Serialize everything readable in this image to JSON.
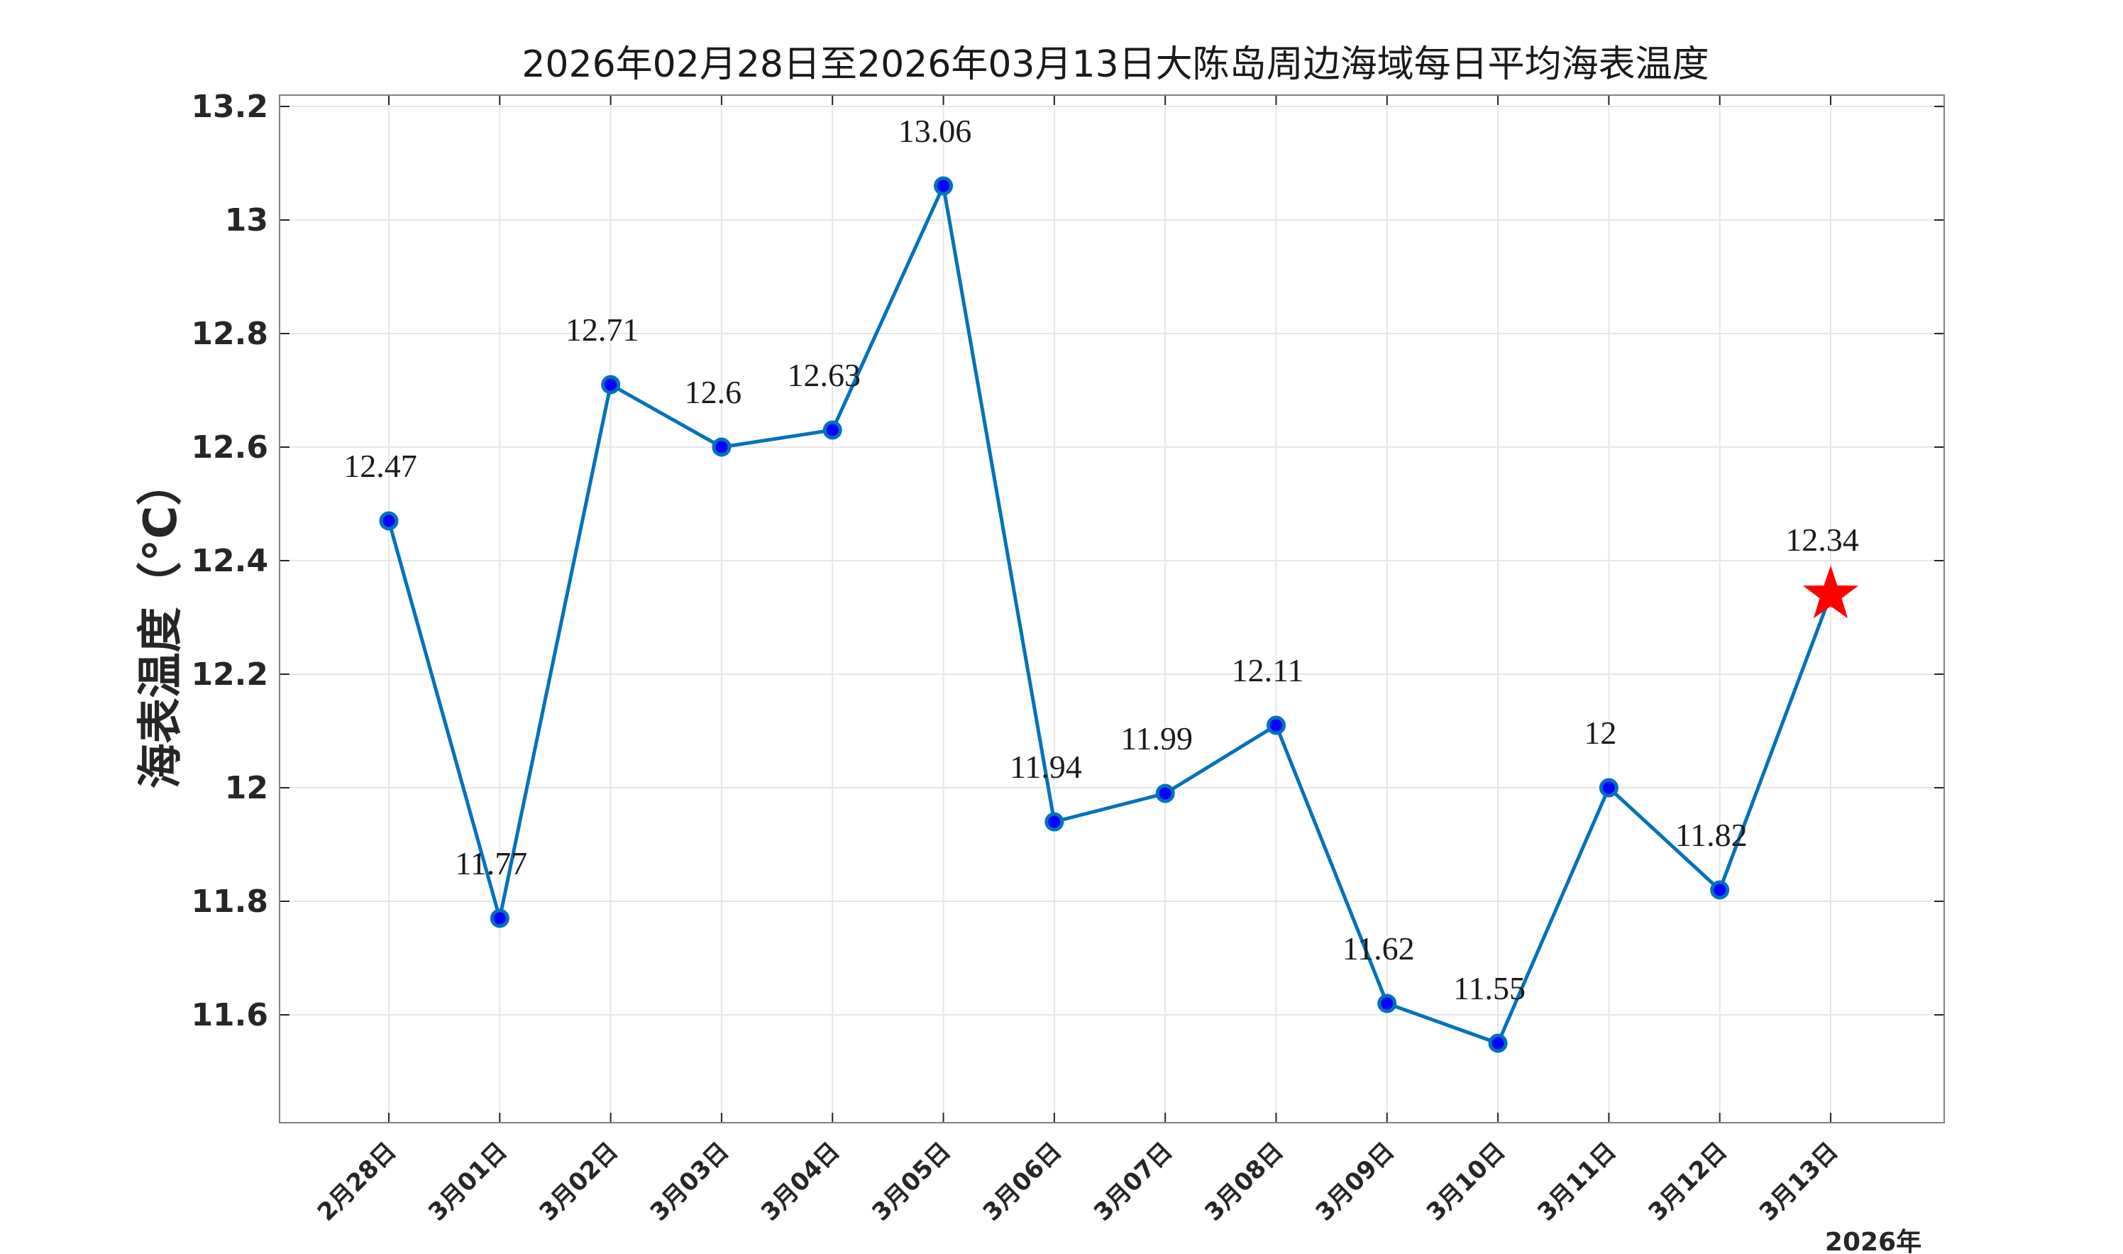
{
  "chart_data": {
    "type": "line",
    "title": "2026年02月28日至2026年03月13日大陈岛周边海域每日平均海表温度",
    "ylabel": "海表温度（°C）",
    "xlabel": "",
    "year_label": "2026年",
    "categories": [
      "2月28日",
      "3月01日",
      "3月02日",
      "3月03日",
      "3月04日",
      "3月05日",
      "3月06日",
      "3月07日",
      "3月08日",
      "3月09日",
      "3月10日",
      "3月11日",
      "3月12日",
      "3月13日"
    ],
    "values": [
      12.47,
      11.77,
      12.71,
      12.6,
      12.63,
      13.06,
      11.94,
      11.99,
      12.11,
      11.62,
      11.55,
      12,
      11.82,
      12.34
    ],
    "data_labels": [
      "12.47",
      "11.77",
      "12.71",
      "12.6",
      "12.63",
      "13.06",
      "11.94",
      "11.99",
      "12.11",
      "11.62",
      "11.55",
      "12",
      "11.82",
      "12.34"
    ],
    "ylim": [
      11.41,
      13.22
    ],
    "yticks": [
      11.6,
      11.8,
      12,
      12.2,
      12.4,
      12.6,
      12.8,
      13,
      13.2
    ],
    "ytick_labels": [
      "11.6",
      "11.8",
      "12",
      "12.2",
      "12.4",
      "12.6",
      "12.8",
      "13",
      "13.2"
    ],
    "grid": true,
    "highlight_last": true,
    "colors": {
      "line": "#0072BD",
      "marker_fill": "#0000FF",
      "highlight": "#FF0000",
      "grid": "#e6e6e6",
      "axis": "#262626"
    }
  }
}
